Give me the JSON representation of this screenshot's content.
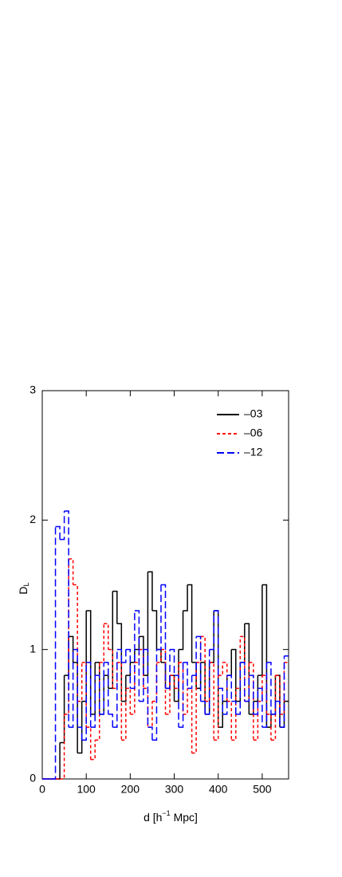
{
  "chart_data": {
    "type": "step",
    "xlabel": "d [h",
    "xlabel_sup": "−1",
    "xlabel_tail": " Mpc]",
    "ylabel": "D",
    "ylabel_sub": "L",
    "x": [
      0,
      10,
      20,
      30,
      40,
      50,
      60,
      70,
      80,
      90,
      100,
      110,
      120,
      130,
      140,
      150,
      160,
      170,
      180,
      190,
      200,
      210,
      220,
      230,
      240,
      250,
      260,
      270,
      280,
      290,
      300,
      310,
      320,
      330,
      340,
      350,
      360,
      370,
      380,
      390,
      400,
      410,
      420,
      430,
      440,
      450,
      460,
      470,
      480,
      490,
      500,
      510,
      520,
      530,
      540,
      550
    ],
    "xlim": [
      0,
      560
    ],
    "ylim": [
      0,
      3
    ],
    "xticks": [
      0,
      100,
      200,
      300,
      400,
      500
    ],
    "yticks": [
      0,
      1,
      2,
      3
    ],
    "legend": "top-right",
    "series": [
      {
        "name": "–03",
        "color": "#000000",
        "dash": "none",
        "values": [
          0,
          0,
          0,
          0,
          0.28,
          0.8,
          1.1,
          0.9,
          0.2,
          0.6,
          1.3,
          0.5,
          0.9,
          0.5,
          0.8,
          0.7,
          1.45,
          1.2,
          0.6,
          0.8,
          0.9,
          1.0,
          1.1,
          0.8,
          1.6,
          1.3,
          1.0,
          0.9,
          0.7,
          0.8,
          0.6,
          1.0,
          1.3,
          1.5,
          0.9,
          0.7,
          0.9,
          0.5,
          0.9,
          1.3,
          0.4,
          0.6,
          0.8,
          1.0,
          0.6,
          0.9,
          1.2,
          0.5,
          0.6,
          0.8,
          1.5,
          0.4,
          0.5,
          0.8,
          0.4,
          0.6
        ]
      },
      {
        "name": "–06",
        "color": "#ff0000",
        "dash": "4,3",
        "values": [
          0,
          0,
          0,
          0,
          0,
          0.5,
          1.7,
          1.5,
          0.6,
          0.9,
          0.4,
          0.15,
          0.3,
          0.9,
          1.2,
          1.0,
          0.7,
          0.9,
          0.3,
          0.7,
          0.5,
          0.9,
          1.0,
          0.7,
          0.4,
          0.6,
          0.9,
          1.0,
          0.5,
          0.8,
          0.7,
          0.9,
          0.5,
          0.7,
          0.2,
          0.9,
          1.1,
          0.6,
          0.9,
          0.3,
          0.8,
          0.9,
          0.6,
          0.3,
          0.7,
          1.1,
          0.6,
          0.9,
          0.3,
          0.6,
          0.8,
          0.5,
          0.3,
          0.8,
          0.5,
          0.9
        ]
      },
      {
        "name": "–12",
        "color": "#0000ff",
        "dash": "9,4",
        "values": [
          0,
          0,
          0,
          1.95,
          1.85,
          2.07,
          0.4,
          1.0,
          0.4,
          0.3,
          0.9,
          0.4,
          0.8,
          0.5,
          0.9,
          0.5,
          0.4,
          1.0,
          0.9,
          1.0,
          0.7,
          1.3,
          0.6,
          1.0,
          0.4,
          0.3,
          1.0,
          1.5,
          0.7,
          1.0,
          0.8,
          0.4,
          0.9,
          0.7,
          0.8,
          1.1,
          0.6,
          0.5,
          1.0,
          1.3,
          0.7,
          0.5,
          0.8,
          0.6,
          0.5,
          0.9,
          0.6,
          0.8,
          0.5,
          0.7,
          0.4,
          0.9,
          0.5,
          0.6,
          0.4,
          0.95
        ]
      }
    ]
  }
}
